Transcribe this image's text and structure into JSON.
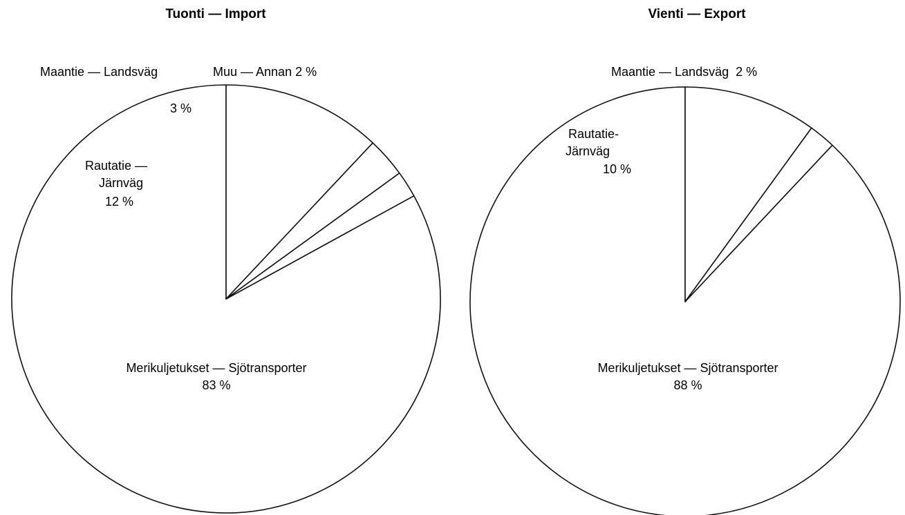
{
  "chart_data": [
    {
      "type": "pie",
      "title": "Tuonti — Import",
      "slices": [
        {
          "name": "Merikuljetukset — Sjötransporter",
          "value": 83,
          "value_label": "83 %"
        },
        {
          "name": "Rautatie — Järnväg",
          "value": 12,
          "value_label": "12 %"
        },
        {
          "name": "Maantie — Landsväg",
          "value": 3,
          "value_label": "3 %"
        },
        {
          "name": "Muu — Annan",
          "value": 2,
          "value_label": "2 %"
        }
      ],
      "colors": {
        "fill": "#ffffff",
        "stroke": "#111111"
      }
    },
    {
      "type": "pie",
      "title": "Vienti — Export",
      "slices": [
        {
          "name": "Merikuljetukset — Sjötransporter",
          "value": 88,
          "value_label": "88 %"
        },
        {
          "name": "Rautatie- Järnväg",
          "value": 10,
          "value_label": "10 %"
        },
        {
          "name": "Maantie — Landsväg",
          "value": 2,
          "value_label": "2 %"
        }
      ],
      "colors": {
        "fill": "#ffffff",
        "stroke": "#111111"
      }
    }
  ],
  "labels": {
    "import": {
      "title": "Tuonti — Import",
      "sea_name": "Merikuljetukset — Sjötransporter",
      "sea_value": "83 %",
      "rail_line1": "Rautatie —",
      "rail_line2": "Järnväg",
      "rail_value": "12 %",
      "road_name": "Maantie — Landsväg",
      "road_value": "3 %",
      "other_text": "Muu — Annan 2 %"
    },
    "export": {
      "title": "Vienti — Export",
      "sea_name": "Merikuljetukset — Sjötransporter",
      "sea_value": "88 %",
      "rail_line1": "Rautatie-",
      "rail_line2": "Järnväg",
      "rail_value": "10 %",
      "road_text": "Maantie — Landsväg  2 %"
    }
  }
}
